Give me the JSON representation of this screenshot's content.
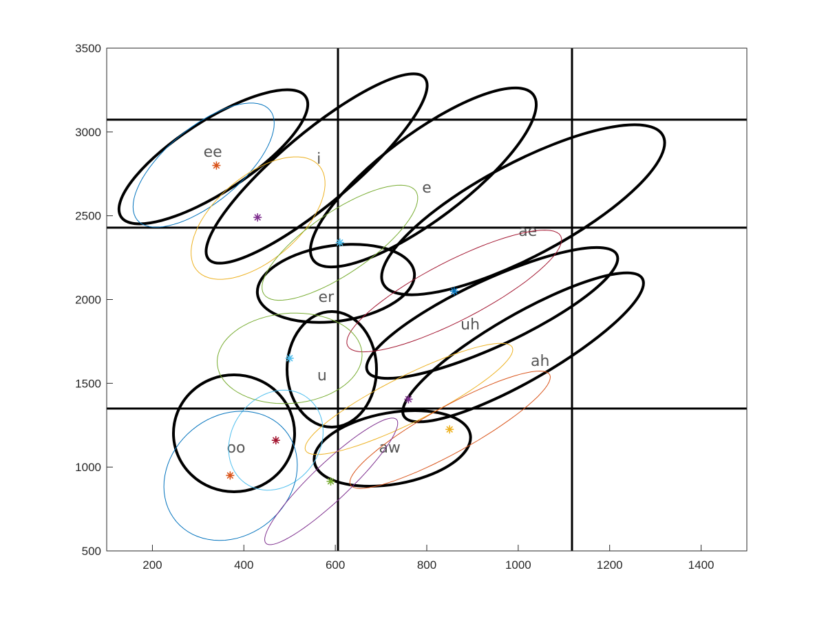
{
  "chart_data": {
    "type": "scatter",
    "xlim": [
      100,
      1500
    ],
    "ylim": [
      500,
      3500
    ],
    "xticks": [
      200,
      400,
      600,
      800,
      1000,
      1200,
      1400
    ],
    "yticks": [
      500,
      1000,
      1500,
      2000,
      2500,
      3000,
      3500
    ],
    "points": {
      "x": [
        340,
        430,
        610,
        860,
        500,
        760,
        850,
        470,
        370,
        590
      ],
      "y": [
        2800,
        2490,
        2340,
        2050,
        1650,
        1405,
        1225,
        1160,
        950,
        915
      ],
      "colors": [
        "#D95319",
        "#7E2F8E",
        "#4DBEEE",
        "#0072BD",
        "#4DBEEE",
        "#7E2F8E",
        "#EDB120",
        "#A2142F",
        "#D95319",
        "#77AC30"
      ]
    },
    "ellipses": [
      {
        "color": "#0072BD",
        "center": [
          312,
          2802
        ],
        "axis1": [
          145,
          328
        ],
        "axis2": [
          53,
          -172
        ]
      },
      {
        "color": "#EDB120",
        "center": [
          431,
          2486
        ],
        "axis1": [
          135,
          308
        ],
        "axis2": [
          57,
          -197
        ]
      },
      {
        "color": "#77AC30",
        "center": [
          610,
          2339
        ],
        "axis1": [
          166,
          308
        ],
        "axis2": [
          38,
          -152
        ]
      },
      {
        "color": "#A2142F",
        "center": [
          860,
          2051
        ],
        "axis1": [
          233,
          328
        ],
        "axis2": [
          30,
          -156
        ]
      },
      {
        "color": "#77AC30",
        "center": [
          500,
          1649
        ],
        "axis1": [
          158,
          41
        ],
        "axis2": [
          12,
          -267
        ]
      },
      {
        "color": "#EDB120",
        "center": [
          761,
          1407
        ],
        "axis1": [
          226,
          308
        ],
        "axis2": [
          23,
          -123
        ]
      },
      {
        "color": "#D95319",
        "center": [
          851,
          1223
        ],
        "axis1": [
          218,
          328
        ],
        "axis2": [
          23,
          -123
        ]
      },
      {
        "color": "#4DBEEE",
        "center": [
          470,
          1161
        ],
        "axis1": [
          45,
          287
        ],
        "axis2": [
          93,
          -82
        ]
      },
      {
        "color": "#0072BD",
        "center": [
          371,
          948
        ],
        "axis1": [
          83,
          349
        ],
        "axis2": [
          120,
          -164
        ]
      },
      {
        "color": "#7E2F8E",
        "center": [
          591,
          915
        ],
        "axis1": [
          143,
          369
        ],
        "axis2": [
          27,
          -82
        ]
      }
    ],
    "annotations": [
      {
        "text": "ee",
        "x": 332,
        "y": 2884
      },
      {
        "text": "i",
        "x": 564,
        "y": 2843
      },
      {
        "text": "e",
        "x": 800,
        "y": 2671
      },
      {
        "text": "ae",
        "x": 1021,
        "y": 2413
      },
      {
        "text": "er",
        "x": 580,
        "y": 2019
      },
      {
        "text": "uh",
        "x": 895,
        "y": 1855
      },
      {
        "text": "ah",
        "x": 1048,
        "y": 1637
      },
      {
        "text": "u",
        "x": 571,
        "y": 1551
      },
      {
        "text": "oo",
        "x": 383,
        "y": 1120
      },
      {
        "text": "aw",
        "x": 719,
        "y": 1120
      }
    ]
  }
}
